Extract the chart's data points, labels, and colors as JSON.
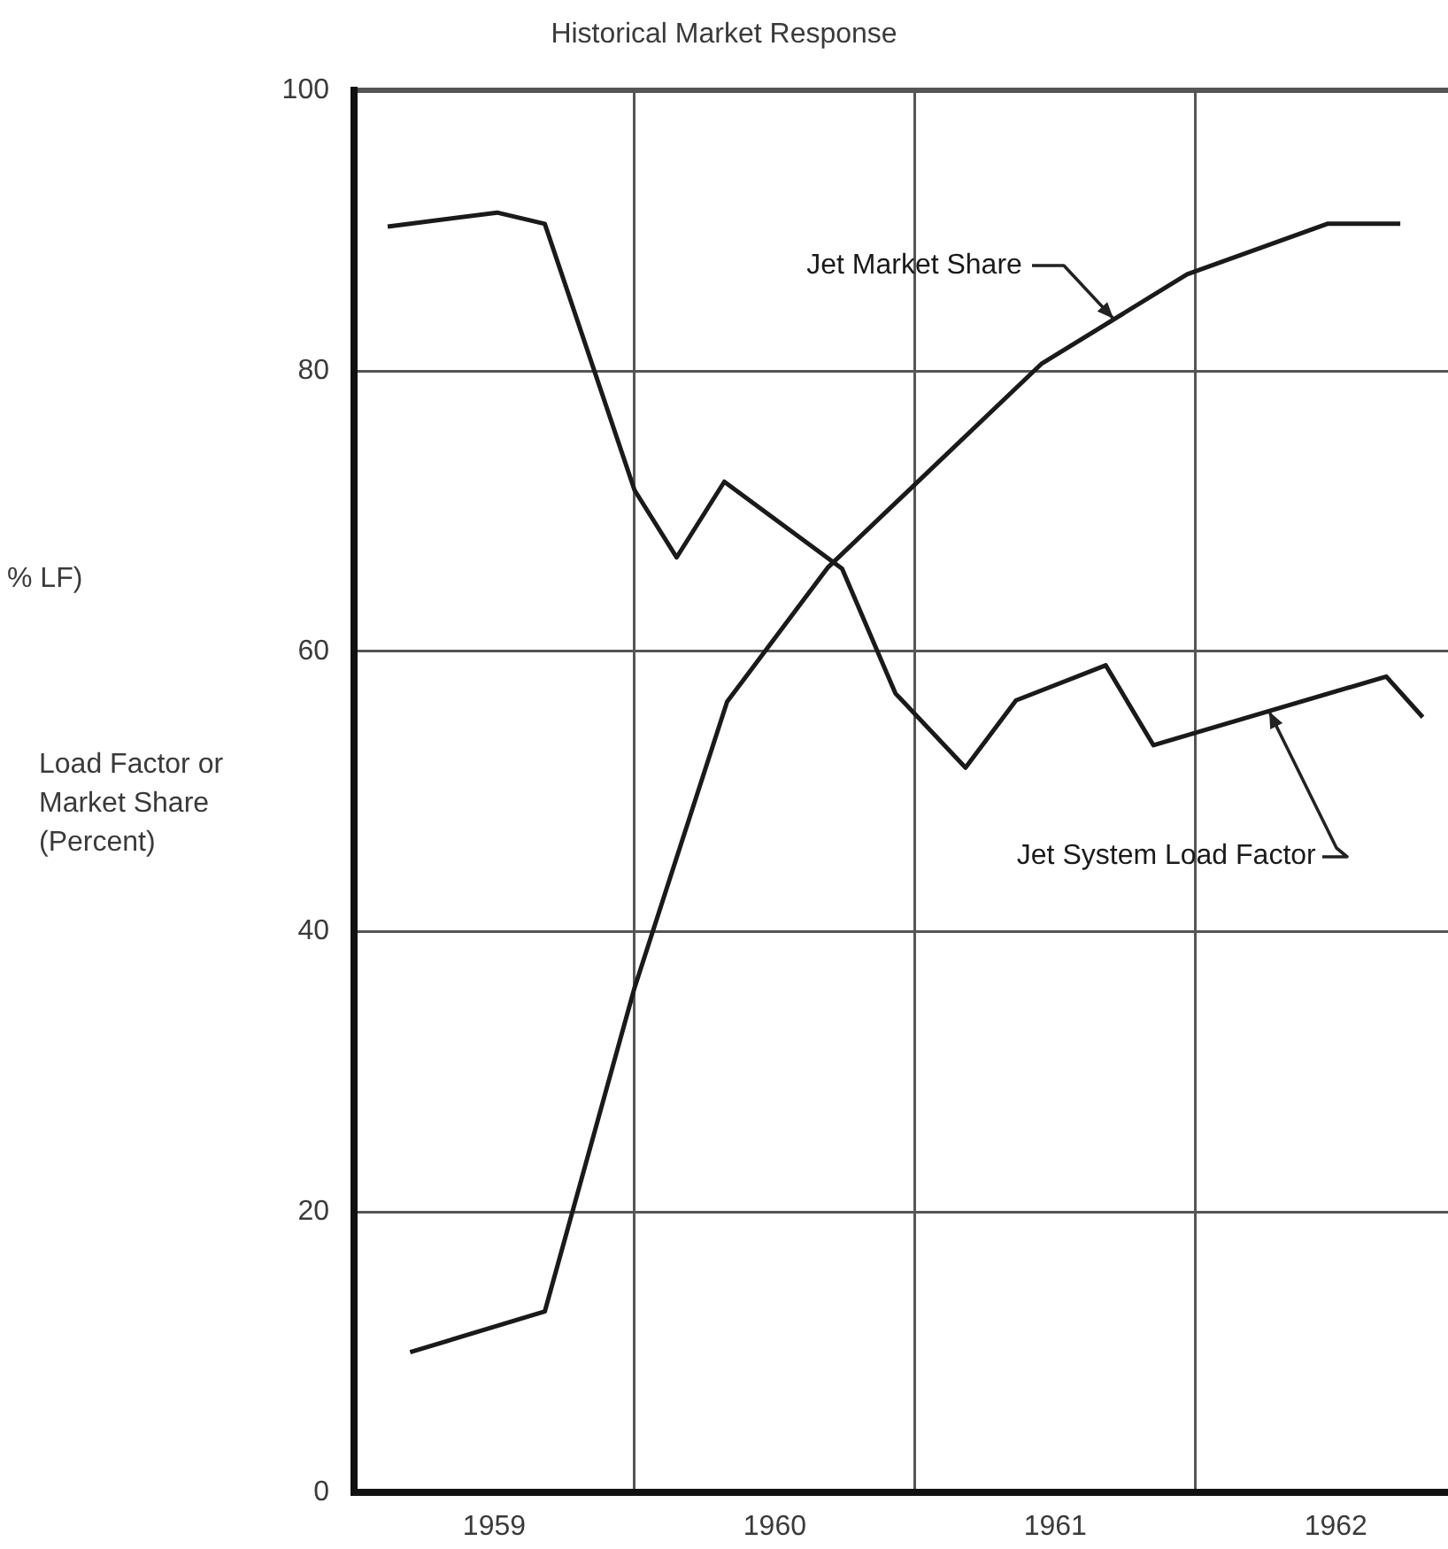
{
  "chart_data": {
    "type": "line",
    "title": "Historical Market Response",
    "ylabel": "Load Factor or Market Share (Percent)",
    "annotations": [
      "% LF)"
    ],
    "series": [
      {
        "name": "Jet Market Share",
        "color": "#1a1a1a",
        "x": [
          1959.2,
          1959.68,
          1960.0,
          1960.33,
          1960.69,
          1961.45,
          1961.97,
          1962.47,
          1962.73
        ],
        "values": [
          10.0,
          12.9,
          36.0,
          56.4,
          66.0,
          80.5,
          86.9,
          90.5,
          90.5
        ]
      },
      {
        "name": "Jet System Load Factor",
        "color": "#1a1a1a",
        "x": [
          1959.12,
          1959.51,
          1959.68,
          1960.0,
          1960.15,
          1960.32,
          1960.74,
          1960.93,
          1961.18,
          1961.36,
          1961.68,
          1961.85,
          1962.68,
          1962.81
        ],
        "values": [
          90.3,
          91.3,
          90.5,
          71.5,
          66.7,
          72.1,
          65.9,
          57.0,
          51.7,
          56.5,
          59.0,
          53.3,
          58.2,
          55.3
        ]
      }
    ],
    "xlim": [
      1959,
      1962.9
    ],
    "xticks": [
      {
        "value": 1959.5,
        "label": "1959"
      },
      {
        "value": 1960,
        "label": null
      },
      {
        "value": 1960.5,
        "label": "1960"
      },
      {
        "value": 1961,
        "label": null
      },
      {
        "value": 1961.5,
        "label": "1961"
      },
      {
        "value": 1962,
        "label": null
      },
      {
        "value": 1962.5,
        "label": "1962"
      }
    ],
    "ylim": [
      0,
      100
    ],
    "yticks": [
      0,
      20,
      40,
      60,
      80,
      100
    ],
    "grid": true,
    "legend": false,
    "marker": "none",
    "line_style": "solid"
  }
}
